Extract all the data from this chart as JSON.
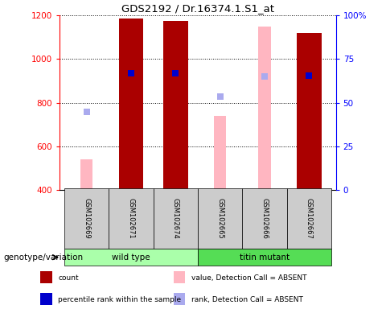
{
  "title": "GDS2192 / Dr.16374.1.S1_at",
  "samples": [
    "GSM102669",
    "GSM102671",
    "GSM102674",
    "GSM102665",
    "GSM102666",
    "GSM102667"
  ],
  "ylim_left": [
    400,
    1200
  ],
  "ylim_right": [
    0,
    100
  ],
  "yticks_left": [
    400,
    600,
    800,
    1000,
    1200
  ],
  "yticks_right": [
    0,
    25,
    50,
    75,
    100
  ],
  "ytick_labels_right": [
    "0",
    "25",
    "50",
    "75",
    "100%"
  ],
  "count_bars": {
    "GSM102671": 1185,
    "GSM102674": 1175,
    "GSM102667": 1120
  },
  "absent_value_bars": {
    "GSM102669": 540,
    "GSM102665": 740,
    "GSM102666": 1150
  },
  "percentile_rank_squares": {
    "GSM102671": 935,
    "GSM102674": 935,
    "GSM102667": 925
  },
  "absent_rank_squares": {
    "GSM102669": 760,
    "GSM102665": 830,
    "GSM102666": 920
  },
  "bar_bottom": 400,
  "count_color": "#AA0000",
  "absent_value_color": "#FFB6C1",
  "percentile_rank_color": "#0000CC",
  "absent_rank_color": "#AAAAEE",
  "bar_width": 0.55,
  "absent_bar_width": 0.28,
  "square_size": 35,
  "group_label": "genotype/variation",
  "groups": [
    {
      "label": "wild type",
      "start": 0,
      "end": 2,
      "color": "#AAFFAA"
    },
    {
      "label": "titin mutant",
      "start": 3,
      "end": 5,
      "color": "#55DD55"
    }
  ],
  "sample_box_color": "#CCCCCC",
  "legend_items": [
    [
      "count",
      "#AA0000",
      "s"
    ],
    [
      "percentile rank within the sample",
      "#0000CC",
      "s"
    ],
    [
      "value, Detection Call = ABSENT",
      "#FFB6C1",
      "s"
    ],
    [
      "rank, Detection Call = ABSENT",
      "#AAAAEE",
      "s"
    ]
  ]
}
